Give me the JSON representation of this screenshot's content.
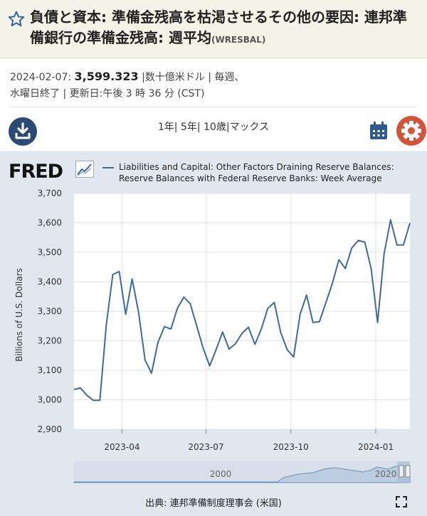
{
  "header": {
    "title": "負債と資本: 準備金残高を枯渇させるその他の要因: 連邦準備銀行の準備金残高: 週平均",
    "series_code": "(WRESBAL)"
  },
  "meta": {
    "date_label": "2024-02-07:",
    "value": "3,599.323",
    "units": "|数十億米ドル | 毎週、",
    "line2": "水曜日終了 | 更新日:午後 3 時 36 分 (CST)"
  },
  "ranges": [
    "1年",
    "5年",
    "10歳",
    "マックス"
  ],
  "brand": {
    "logo": "FRED",
    "line_color": "#40699c",
    "accent": "#d2553a",
    "dark_button": "#2b4a73"
  },
  "legend": "Liabilities and Capital: Other Factors Draining Reserve Balances: Reserve Balances with Federal Reserve Banks: Week Average",
  "source": "出典: 連邦準備制度理事会 (米国)",
  "chart_data": {
    "type": "line",
    "title": "Liabilities and Capital: Other Factors Draining Reserve Balances: Reserve Balances with Federal Reserve Banks: Week Average",
    "xlabel": "",
    "ylabel": "Billions of U.S. Dollars",
    "ylim": [
      2900,
      3700
    ],
    "yticks": [
      "2,900",
      "3,000",
      "3,100",
      "3,200",
      "3,300",
      "3,400",
      "3,500",
      "3,600",
      "3,700"
    ],
    "xticks": [
      "2023-04",
      "2023-07",
      "2023-10",
      "2024-01"
    ],
    "grid": true,
    "series": [
      {
        "name": "WRESBAL",
        "x": [
          "2023-02-08",
          "2023-02-15",
          "2023-02-22",
          "2023-03-01",
          "2023-03-08",
          "2023-03-15",
          "2023-03-22",
          "2023-03-29",
          "2023-04-05",
          "2023-04-12",
          "2023-04-19",
          "2023-04-26",
          "2023-05-03",
          "2023-05-10",
          "2023-05-17",
          "2023-05-24",
          "2023-05-31",
          "2023-06-07",
          "2023-06-14",
          "2023-06-21",
          "2023-06-28",
          "2023-07-05",
          "2023-07-12",
          "2023-07-19",
          "2023-07-26",
          "2023-08-02",
          "2023-08-09",
          "2023-08-16",
          "2023-08-23",
          "2023-08-30",
          "2023-09-06",
          "2023-09-13",
          "2023-09-20",
          "2023-09-27",
          "2023-10-04",
          "2023-10-11",
          "2023-10-18",
          "2023-10-25",
          "2023-11-01",
          "2023-11-08",
          "2023-11-15",
          "2023-11-22",
          "2023-11-29",
          "2023-12-06",
          "2023-12-13",
          "2023-12-20",
          "2023-12-27",
          "2024-01-03",
          "2024-01-10",
          "2024-01-17",
          "2024-01-24",
          "2024-01-31",
          "2024-02-07"
        ],
        "values": [
          3035,
          3040,
          3015,
          2998,
          2998,
          3255,
          3425,
          3435,
          3290,
          3410,
          3295,
          3135,
          3090,
          3195,
          3248,
          3240,
          3310,
          3348,
          3325,
          3250,
          3175,
          3115,
          3170,
          3230,
          3172,
          3190,
          3225,
          3246,
          3188,
          3240,
          3310,
          3330,
          3228,
          3170,
          3145,
          3290,
          3355,
          3262,
          3265,
          3330,
          3395,
          3475,
          3445,
          3515,
          3540,
          3535,
          3445,
          3262,
          3495,
          3610,
          3525,
          3525,
          3599
        ]
      }
    ]
  }
}
